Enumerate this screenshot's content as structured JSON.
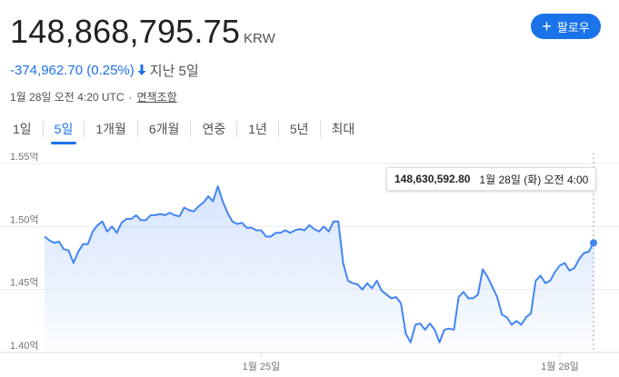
{
  "quote": {
    "price": "148,868,795.75",
    "currency": "KRW",
    "change": "-374,962.70 (0.25%)",
    "period": "지난 5일",
    "timestamp": "1월 28일 오전 4:20 UTC",
    "separator": "·",
    "disclaimer": "면책조항"
  },
  "follow_button": {
    "label": "팔로우",
    "icon": "plus-icon"
  },
  "tabs": [
    {
      "label": "1일",
      "active": false
    },
    {
      "label": "5일",
      "active": true
    },
    {
      "label": "1개월",
      "active": false
    },
    {
      "label": "6개월",
      "active": false
    },
    {
      "label": "연중",
      "active": false
    },
    {
      "label": "1년",
      "active": false
    },
    {
      "label": "5년",
      "active": false
    },
    {
      "label": "최대",
      "active": false
    }
  ],
  "tooltip": {
    "value": "148,630,592.80",
    "date": "1월 28일 (화) 오전 4:00"
  },
  "colors": {
    "accent": "#1a73e8",
    "line": "#4285f4",
    "negative": "#1a73e8"
  },
  "chart_data": {
    "type": "area",
    "y_ticks": [
      "1.55억",
      "1.50억",
      "1.45억",
      "1.40억"
    ],
    "y_tick_values": [
      155000000,
      150000000,
      145000000,
      140000000
    ],
    "ylim": [
      140000000,
      155000000
    ],
    "x_ticks": [
      "1월 25일",
      "1월 28일"
    ],
    "grid": true,
    "series": [
      {
        "values": [
          149200000,
          148900000,
          148700000,
          148800000,
          148200000,
          148100000,
          147100000,
          148000000,
          148600000,
          148600000,
          149600000,
          150100000,
          150400000,
          149600000,
          150000000,
          149500000,
          150300000,
          150600000,
          150600000,
          150900000,
          150500000,
          150500000,
          150900000,
          150900000,
          151000000,
          150900000,
          151100000,
          150900000,
          150800000,
          151500000,
          151300000,
          151200000,
          151600000,
          151900000,
          152400000,
          152000000,
          153200000,
          152000000,
          151100000,
          150400000,
          150200000,
          150300000,
          149900000,
          149900000,
          149700000,
          149700000,
          149200000,
          149200000,
          149500000,
          149500000,
          149700000,
          149500000,
          149700000,
          149800000,
          149700000,
          150100000,
          149800000,
          149600000,
          150000000,
          149600000,
          150400000,
          150400000,
          147100000,
          145700000,
          145500000,
          145400000,
          145000000,
          145500000,
          145100000,
          145700000,
          144900000,
          144600000,
          144300000,
          144400000,
          143900000,
          141500000,
          140800000,
          142200000,
          142300000,
          141800000,
          142300000,
          141800000,
          140800000,
          141800000,
          141900000,
          141800000,
          144400000,
          144800000,
          144300000,
          144300000,
          144600000,
          146600000,
          146000000,
          145200000,
          144400000,
          143000000,
          142800000,
          142200000,
          142500000,
          142200000,
          142800000,
          143100000,
          145700000,
          146100000,
          145500000,
          145700000,
          146400000,
          146900000,
          147100000,
          146500000,
          146700000,
          147400000,
          147900000,
          148000000,
          148700000
        ]
      }
    ]
  }
}
